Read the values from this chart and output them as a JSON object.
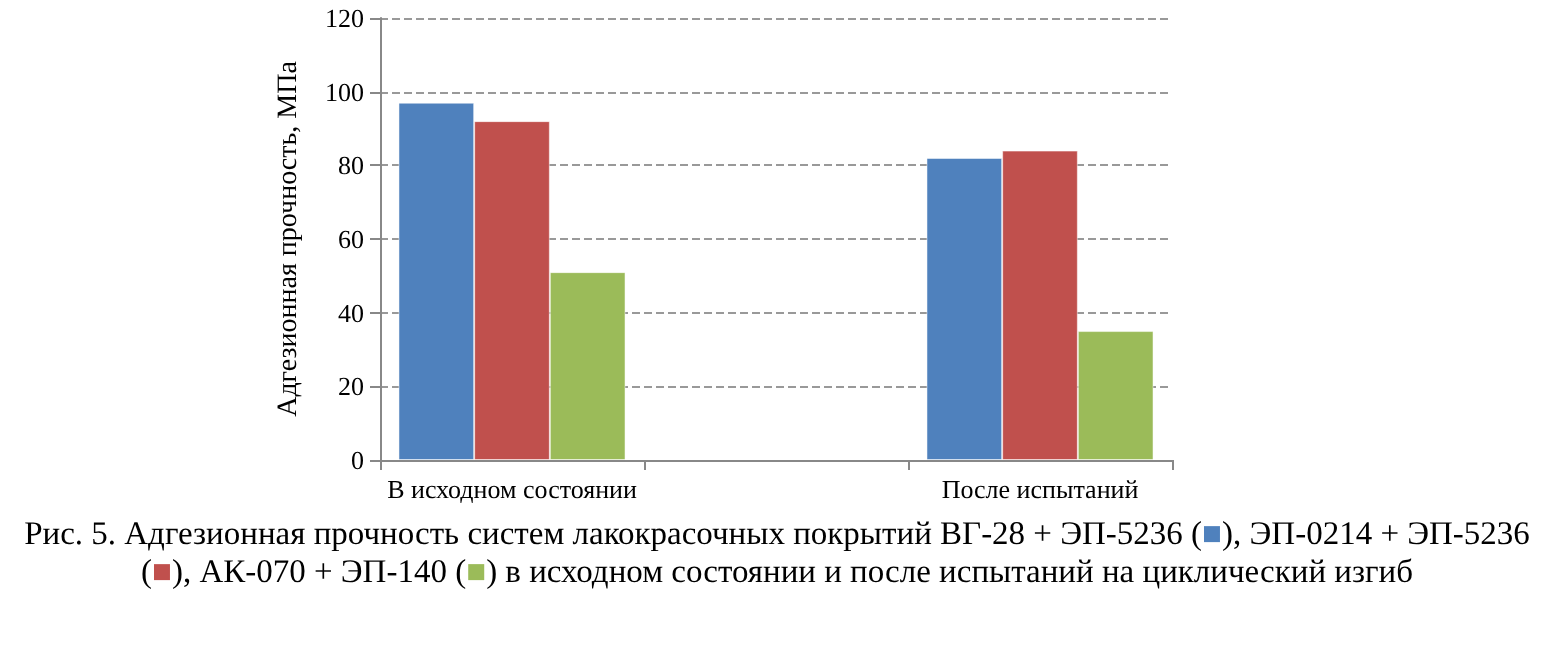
{
  "chart_data": {
    "type": "bar",
    "title": "Рис. 5. Адгезионная прочность систем лакокрасочных покрытий ВГ-28 + ЭП-5236 (■), ЭП-0214 + ЭП-5236 (■), АК-070 + ЭП-140 (■) в исходном состоянии и после испытаний на циклический изгиб",
    "ylabel": "Адгезионная прочность, МПа",
    "categories": [
      "В исходном состоянии",
      null,
      "После испытаний"
    ],
    "series": [
      {
        "color": "#4f81bd",
        "values": [
          97,
          null,
          82
        ]
      },
      {
        "color": "#c0504d",
        "values": [
          92,
          null,
          84
        ]
      },
      {
        "color": "#9bbb59",
        "values": [
          51,
          null,
          35
        ]
      }
    ],
    "ylim": [
      0,
      120
    ],
    "yticks": [
      0,
      20,
      40,
      60,
      80,
      100,
      120
    ],
    "grid": "y"
  }
}
